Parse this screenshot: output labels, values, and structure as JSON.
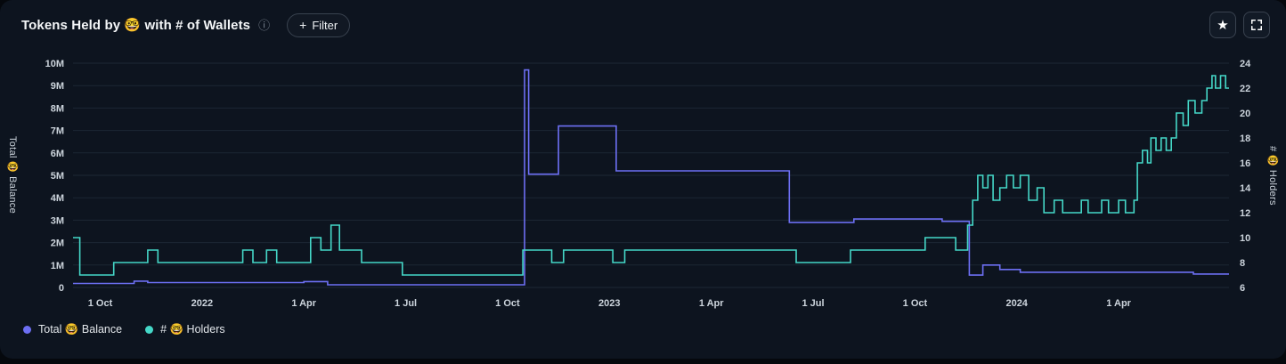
{
  "header": {
    "title": "Tokens Held by 🤓 with # of Wallets",
    "info_icon": "ⓘ",
    "filter_plus": "+",
    "filter_label": "Filter",
    "favorite_icon": "★"
  },
  "legend": {
    "items": [
      {
        "id": "balance",
        "label": "Total 🤓 Balance"
      },
      {
        "id": "holders",
        "label": "# 🤓 Holders"
      }
    ]
  },
  "colors": {
    "page_bg": "#05080d",
    "card_bg": "#0d141f",
    "border": "#39424f",
    "grid": "#1d2734",
    "tick_text": "#ccd4dc",
    "title_text": "#f4f6f8",
    "text": "#e3e7eb",
    "muted": "#7d8793",
    "balance": "#6d6ff3",
    "holders": "#45d8c8"
  },
  "chart_data": {
    "type": "line",
    "step": "after",
    "grid": "horizontal",
    "legend_position": "bottom-left",
    "x_axis": {
      "min": 0.2,
      "max": 34.25,
      "ticks": [
        {
          "x": 1,
          "label": "1 Oct"
        },
        {
          "x": 4,
          "label": "2022"
        },
        {
          "x": 7,
          "label": "1 Apr"
        },
        {
          "x": 10,
          "label": "1 Jul"
        },
        {
          "x": 13,
          "label": "1 Oct"
        },
        {
          "x": 16,
          "label": "2023"
        },
        {
          "x": 19,
          "label": "1 Apr"
        },
        {
          "x": 22,
          "label": "1 Jul"
        },
        {
          "x": 25,
          "label": "1 Oct"
        },
        {
          "x": 28,
          "label": "2024"
        },
        {
          "x": 31,
          "label": "1 Apr"
        }
      ]
    },
    "left_axis": {
      "title": "Total 🤓 Balance",
      "min": 0,
      "max": 10,
      "unit": "M",
      "ticks": [
        {
          "v": 0,
          "label": "0"
        },
        {
          "v": 1,
          "label": "1M"
        },
        {
          "v": 2,
          "label": "2M"
        },
        {
          "v": 3,
          "label": "3M"
        },
        {
          "v": 4,
          "label": "4M"
        },
        {
          "v": 5,
          "label": "5M"
        },
        {
          "v": 6,
          "label": "6M"
        },
        {
          "v": 7,
          "label": "7M"
        },
        {
          "v": 8,
          "label": "8M"
        },
        {
          "v": 9,
          "label": "9M"
        },
        {
          "v": 10,
          "label": "10M"
        }
      ]
    },
    "right_axis": {
      "title": "# 🤓 Holders",
      "min": 6,
      "max": 24,
      "ticks": [
        {
          "v": 6,
          "label": "6"
        },
        {
          "v": 8,
          "label": "8"
        },
        {
          "v": 10,
          "label": "10"
        },
        {
          "v": 12,
          "label": "12"
        },
        {
          "v": 14,
          "label": "14"
        },
        {
          "v": 16,
          "label": "16"
        },
        {
          "v": 18,
          "label": "18"
        },
        {
          "v": 20,
          "label": "20"
        },
        {
          "v": 22,
          "label": "22"
        },
        {
          "v": 24,
          "label": "24"
        }
      ]
    },
    "series": [
      {
        "id": "balance",
        "name": "Total 🤓 Balance",
        "axis": "left",
        "color": "#6d6ff3",
        "points": [
          [
            0.2,
            0.18
          ],
          [
            2.0,
            0.28
          ],
          [
            2.4,
            0.22
          ],
          [
            7.0,
            0.26
          ],
          [
            7.7,
            0.12
          ],
          [
            13.5,
            9.7
          ],
          [
            13.62,
            5.05
          ],
          [
            14.5,
            7.2
          ],
          [
            16.2,
            5.2
          ],
          [
            21.3,
            2.9
          ],
          [
            23.2,
            3.05
          ],
          [
            25.8,
            2.95
          ],
          [
            26.6,
            0.55
          ],
          [
            27.0,
            1.0
          ],
          [
            27.5,
            0.8
          ],
          [
            28.1,
            0.68
          ],
          [
            33.2,
            0.6
          ]
        ]
      },
      {
        "id": "holders",
        "name": "# 🤓 Holders",
        "axis": "right",
        "color": "#45d8c8",
        "points": [
          [
            0.2,
            10
          ],
          [
            0.4,
            7
          ],
          [
            1.4,
            8
          ],
          [
            2.4,
            9
          ],
          [
            2.7,
            8
          ],
          [
            5.2,
            9
          ],
          [
            5.5,
            8
          ],
          [
            5.9,
            9
          ],
          [
            6.2,
            8
          ],
          [
            7.2,
            10
          ],
          [
            7.5,
            9
          ],
          [
            7.8,
            11
          ],
          [
            8.05,
            9
          ],
          [
            8.7,
            8
          ],
          [
            9.9,
            7
          ],
          [
            13.45,
            9
          ],
          [
            14.3,
            8
          ],
          [
            14.65,
            9
          ],
          [
            16.1,
            8
          ],
          [
            16.45,
            9
          ],
          [
            21.5,
            8
          ],
          [
            23.1,
            9
          ],
          [
            25.3,
            10
          ],
          [
            26.2,
            9
          ],
          [
            26.55,
            11
          ],
          [
            26.7,
            13
          ],
          [
            26.85,
            15
          ],
          [
            27.0,
            14
          ],
          [
            27.15,
            15
          ],
          [
            27.3,
            13
          ],
          [
            27.5,
            14
          ],
          [
            27.7,
            15
          ],
          [
            27.9,
            14
          ],
          [
            28.1,
            15
          ],
          [
            28.35,
            13
          ],
          [
            28.6,
            14
          ],
          [
            28.8,
            12
          ],
          [
            29.1,
            13
          ],
          [
            29.35,
            12
          ],
          [
            29.9,
            13
          ],
          [
            30.1,
            12
          ],
          [
            30.5,
            13
          ],
          [
            30.7,
            12
          ],
          [
            31.0,
            13
          ],
          [
            31.2,
            12
          ],
          [
            31.45,
            13
          ],
          [
            31.55,
            16
          ],
          [
            31.7,
            17
          ],
          [
            31.85,
            16
          ],
          [
            31.95,
            18
          ],
          [
            32.1,
            17
          ],
          [
            32.25,
            18
          ],
          [
            32.4,
            17
          ],
          [
            32.55,
            18
          ],
          [
            32.7,
            20
          ],
          [
            32.9,
            19
          ],
          [
            33.05,
            21
          ],
          [
            33.25,
            20
          ],
          [
            33.45,
            21
          ],
          [
            33.6,
            22
          ],
          [
            33.75,
            23
          ],
          [
            33.85,
            22
          ],
          [
            34.0,
            23
          ],
          [
            34.15,
            22
          ]
        ]
      }
    ]
  }
}
